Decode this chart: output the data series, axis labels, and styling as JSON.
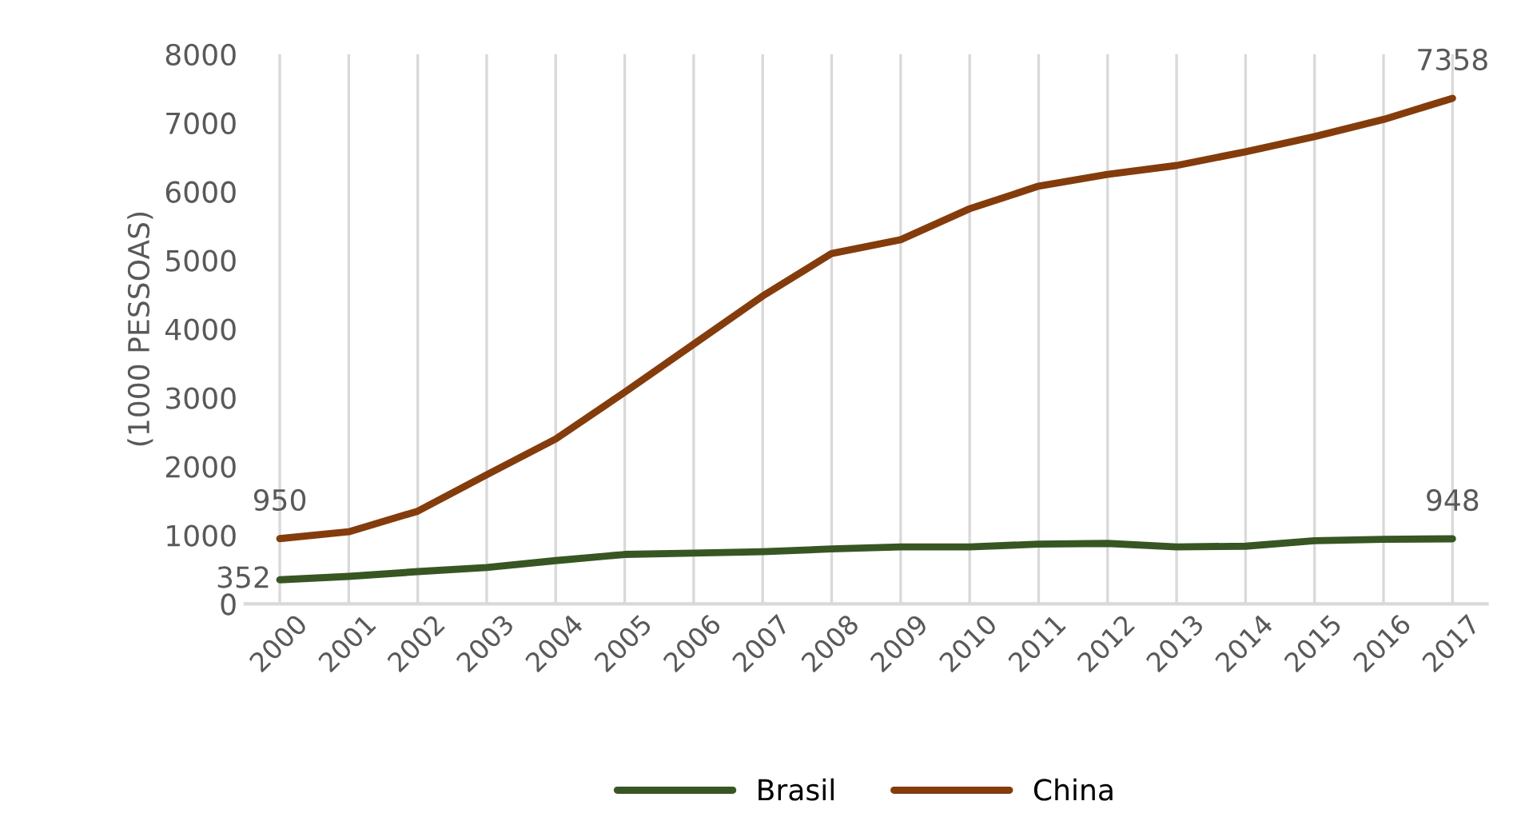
{
  "chart_data": {
    "type": "line",
    "ylabel": "(1000 PESSOAS)",
    "categories": [
      "2000",
      "2001",
      "2002",
      "2003",
      "2004",
      "2005",
      "2006",
      "2007",
      "2008",
      "2009",
      "2010",
      "2011",
      "2012",
      "2013",
      "2014",
      "2015",
      "2016",
      "2017"
    ],
    "series": [
      {
        "name": "Brasil",
        "color": "#375623",
        "values": [
          352,
          400,
          470,
          530,
          630,
          720,
          740,
          760,
          800,
          830,
          830,
          870,
          880,
          830,
          840,
          920,
          940,
          948
        ],
        "value_labels": [
          "352",
          null,
          null,
          null,
          null,
          null,
          null,
          null,
          null,
          null,
          null,
          null,
          null,
          null,
          null,
          null,
          null,
          "948"
        ]
      },
      {
        "name": "China",
        "color": "#843c0c",
        "values": [
          950,
          1050,
          1350,
          1880,
          2400,
          3080,
          3780,
          4480,
          5100,
          5300,
          5750,
          6080,
          6250,
          6380,
          6580,
          6800,
          7050,
          7358
        ],
        "value_labels": [
          "950",
          null,
          null,
          null,
          null,
          null,
          null,
          null,
          null,
          null,
          null,
          null,
          null,
          null,
          null,
          null,
          null,
          "7358"
        ]
      }
    ],
    "ylim": [
      0,
      8000
    ],
    "yticks": [
      0,
      1000,
      2000,
      3000,
      4000,
      5000,
      6000,
      7000,
      8000
    ],
    "grid": "x",
    "legend": "bottom",
    "marker": "none",
    "line_style": "solid"
  }
}
